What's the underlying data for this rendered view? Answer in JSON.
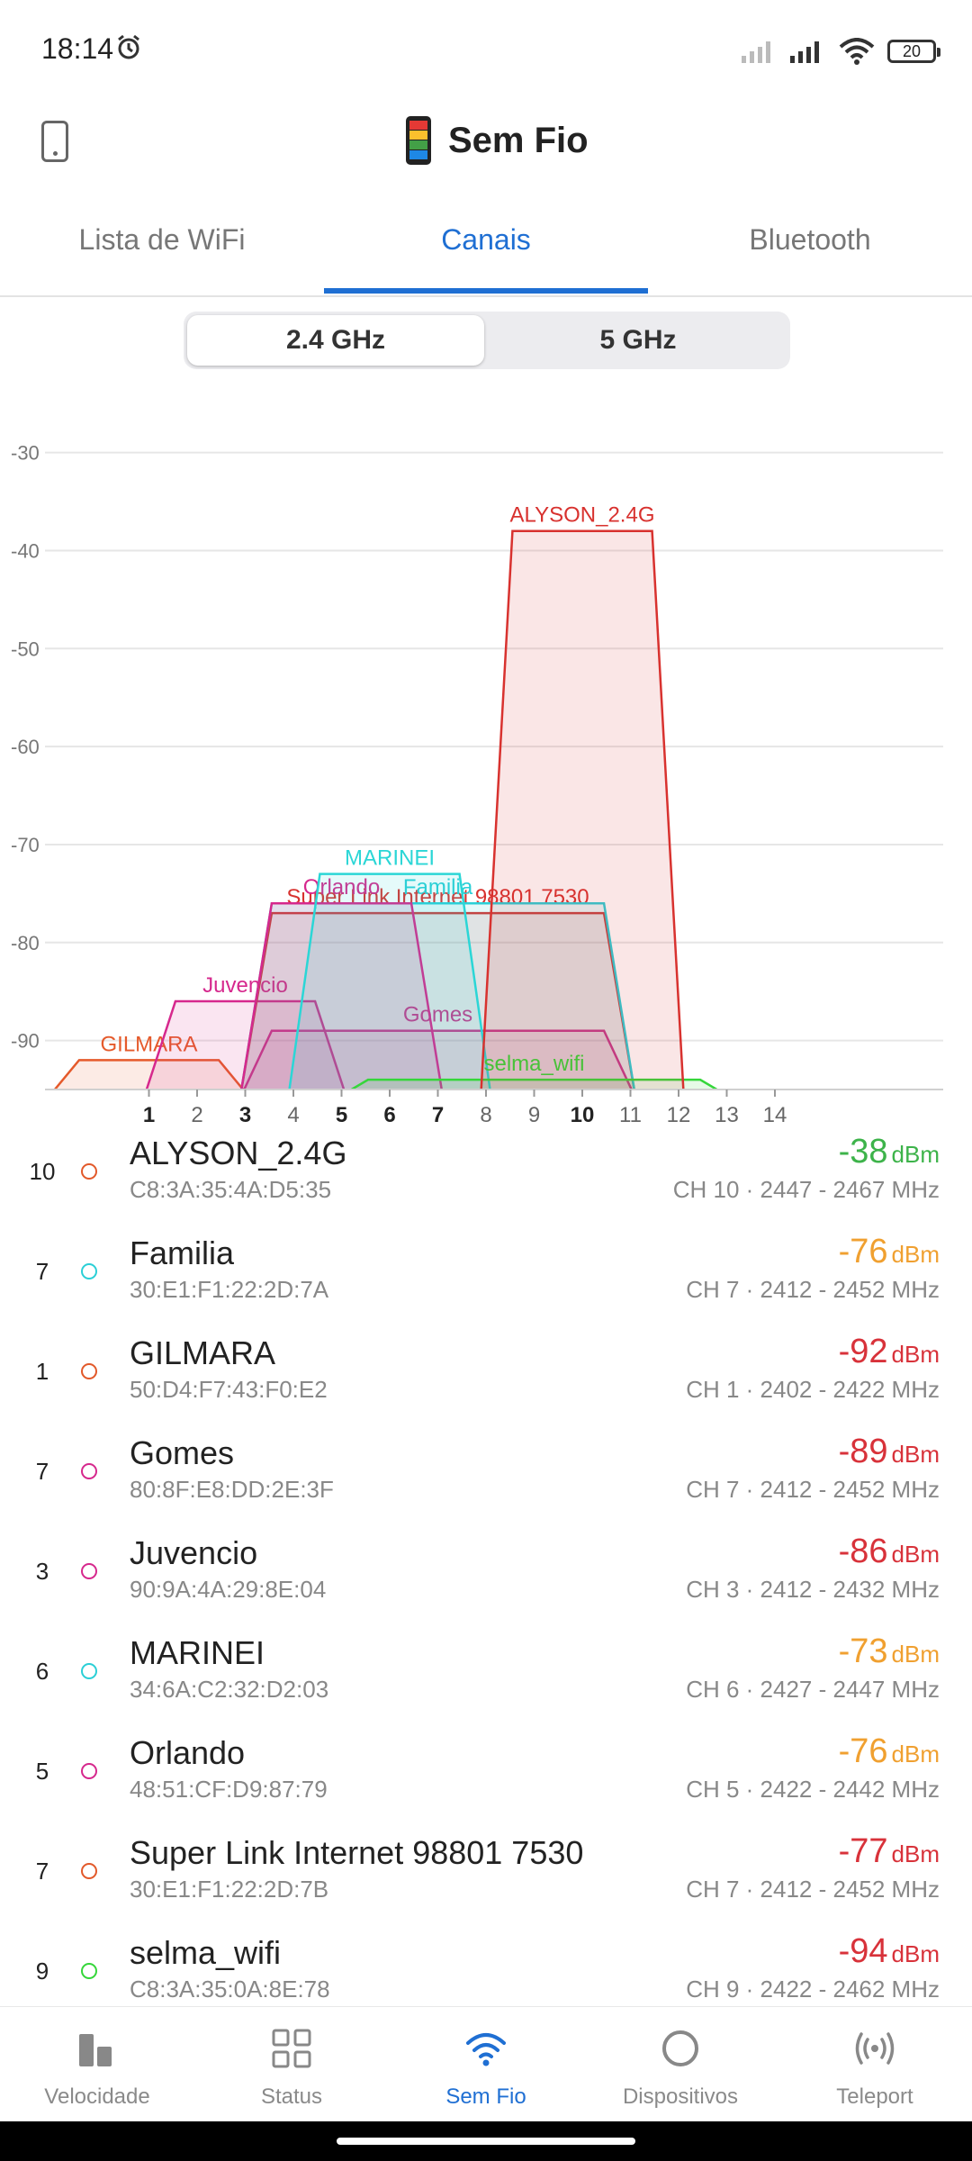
{
  "status_bar": {
    "time": "18:14",
    "battery": "20"
  },
  "app": {
    "title": "Sem Fio"
  },
  "tabs": [
    {
      "label": "Lista de WiFi",
      "active": false
    },
    {
      "label": "Canais",
      "active": true
    },
    {
      "label": "Bluetooth",
      "active": false
    }
  ],
  "band_toggle": {
    "options": [
      "2.4 GHz",
      "5 GHz"
    ],
    "selected": "2.4 GHz"
  },
  "chart_data": {
    "type": "area",
    "y_ticks": [
      -30,
      -40,
      -50,
      -60,
      -70,
      -80,
      -90
    ],
    "x_ticks": [
      {
        "label": "1",
        "bold": true
      },
      {
        "label": "2",
        "bold": false
      },
      {
        "label": "3",
        "bold": true
      },
      {
        "label": "4",
        "bold": false
      },
      {
        "label": "5",
        "bold": true
      },
      {
        "label": "6",
        "bold": true
      },
      {
        "label": "7",
        "bold": true
      },
      {
        "label": "8",
        "bold": false
      },
      {
        "label": "9",
        "bold": false
      },
      {
        "label": "10",
        "bold": true
      },
      {
        "label": "11",
        "bold": false
      },
      {
        "label": "12",
        "bold": false
      },
      {
        "label": "13",
        "bold": false
      },
      {
        "label": "14",
        "bold": false
      }
    ],
    "ylim": [
      -95,
      -27
    ],
    "grid": true,
    "series": [
      {
        "name": "GILMARA",
        "channel": 1,
        "width_mhz": 20,
        "rssi": -92,
        "color": "#e55a2b"
      },
      {
        "name": "Juvencio",
        "channel": 3,
        "width_mhz": 20,
        "rssi": -86,
        "color": "#d6288d"
      },
      {
        "name": "Gomes",
        "channel": 7,
        "width_mhz": 40,
        "rssi": -89,
        "color": "#d6288d"
      },
      {
        "name": "Super Link Internet 98801 7530",
        "channel": 7,
        "width_mhz": 40,
        "rssi": -77,
        "color": "#d8322f"
      },
      {
        "name": "Familia",
        "channel": 7,
        "width_mhz": 40,
        "rssi": -76,
        "color": "#2bcfd6"
      },
      {
        "name": "Orlando",
        "channel": 5,
        "width_mhz": 20,
        "rssi": -76,
        "color": "#d6288d"
      },
      {
        "name": "MARINEI",
        "channel": 6,
        "width_mhz": 20,
        "rssi": -73,
        "color": "#2bd6d6"
      },
      {
        "name": "selma_wifi",
        "channel": 9,
        "width_mhz": 40,
        "rssi": -94,
        "color": "#35d63a"
      },
      {
        "name": "ALYSON_2.4G",
        "channel": 10,
        "width_mhz": 20,
        "rssi": -38,
        "color": "#d8322f"
      }
    ]
  },
  "networks": [
    {
      "channel": "10",
      "name": "ALYSON_2.4G",
      "mac": "C8:3A:35:4A:D5:35",
      "rssi": "-38",
      "unit": "dBm",
      "rssi_color": "#3db34a",
      "info": "CH 10 · 2447 - 2467 MHz",
      "dot_color": "#e2592a"
    },
    {
      "channel": "7",
      "name": "Familia",
      "mac": "30:E1:F1:22:2D:7A",
      "rssi": "-76",
      "unit": "dBm",
      "rssi_color": "#f0a030",
      "info": "CH 7 · 2412 - 2452 MHz",
      "dot_color": "#2bcfd6"
    },
    {
      "channel": "1",
      "name": "GILMARA",
      "mac": "50:D4:F7:43:F0:E2",
      "rssi": "-92",
      "unit": "dBm",
      "rssi_color": "#d8323a",
      "info": "CH 1 · 2402 - 2422 MHz",
      "dot_color": "#e2592a"
    },
    {
      "channel": "7",
      "name": "Gomes",
      "mac": "80:8F:E8:DD:2E:3F",
      "rssi": "-89",
      "unit": "dBm",
      "rssi_color": "#d8323a",
      "info": "CH 7 · 2412 - 2452 MHz",
      "dot_color": "#d6288d"
    },
    {
      "channel": "3",
      "name": "Juvencio",
      "mac": "90:9A:4A:29:8E:04",
      "rssi": "-86",
      "unit": "dBm",
      "rssi_color": "#d8323a",
      "info": "CH 3 · 2412 - 2432 MHz",
      "dot_color": "#d6288d"
    },
    {
      "channel": "6",
      "name": "MARINEI",
      "mac": "34:6A:C2:32:D2:03",
      "rssi": "-73",
      "unit": "dBm",
      "rssi_color": "#f0a030",
      "info": "CH 6 · 2427 - 2447 MHz",
      "dot_color": "#2bcfd6"
    },
    {
      "channel": "5",
      "name": "Orlando",
      "mac": "48:51:CF:D9:87:79",
      "rssi": "-76",
      "unit": "dBm",
      "rssi_color": "#f0a030",
      "info": "CH 5 · 2422 - 2442 MHz",
      "dot_color": "#d6288d"
    },
    {
      "channel": "7",
      "name": "Super Link Internet 98801 7530",
      "mac": "30:E1:F1:22:2D:7B",
      "rssi": "-77",
      "unit": "dBm",
      "rssi_color": "#d8323a",
      "info": "CH 7 · 2412 - 2452 MHz",
      "dot_color": "#e2592a"
    },
    {
      "channel": "9",
      "name": "selma_wifi",
      "mac": "C8:3A:35:0A:8E:78",
      "rssi": "-94",
      "unit": "dBm",
      "rssi_color": "#d8323a",
      "info": "CH 9 · 2422 - 2462 MHz",
      "dot_color": "#35d63a"
    }
  ],
  "bottom_nav": [
    {
      "label": "Velocidade",
      "icon": "speed-bars-icon",
      "active": false
    },
    {
      "label": "Status",
      "icon": "grid-icon",
      "active": false
    },
    {
      "label": "Sem Fio",
      "icon": "wifi-icon",
      "active": true
    },
    {
      "label": "Dispositivos",
      "icon": "circle-icon",
      "active": false
    },
    {
      "label": "Teleport",
      "icon": "teleport-icon",
      "active": false
    }
  ]
}
